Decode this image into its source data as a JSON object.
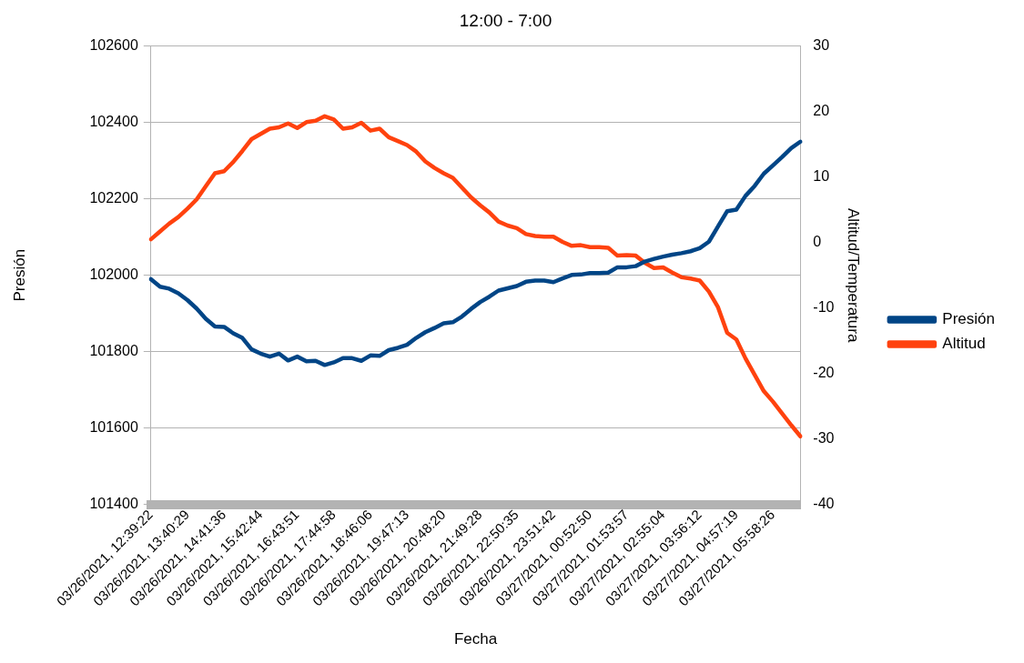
{
  "chart_data": {
    "type": "line",
    "title": "12:00 - 7:00",
    "xlabel": "Fecha",
    "ylabel": "Presión",
    "y2label": "Altitud/Temperatura",
    "categories": [
      "03/26/2021, 12:39:22",
      null,
      null,
      null,
      "03/26/2021, 13:40:29",
      null,
      null,
      null,
      "03/26/2021, 14:41:36",
      null,
      null,
      null,
      "03/26/2021, 15:42:44",
      null,
      null,
      null,
      "03/26/2021, 16:43:51",
      null,
      null,
      null,
      "03/26/2021, 17:44:58",
      null,
      null,
      null,
      "03/26/2021, 18:46:06",
      null,
      null,
      null,
      "03/26/2021, 19:47:13",
      null,
      null,
      null,
      "03/26/2021, 20:48:20",
      null,
      null,
      null,
      "03/26/2021, 21:49:28",
      null,
      null,
      null,
      "03/26/2021, 22:50:35",
      null,
      null,
      null,
      "03/26/2021, 23:51:42",
      null,
      null,
      null,
      "03/27/2021, 00:52:50",
      null,
      null,
      null,
      "03/27/2021, 01:53:57",
      null,
      null,
      null,
      "03/27/2021, 02:55:04",
      null,
      null,
      null,
      "03/27/2021, 03:56:12",
      null,
      null,
      null,
      "03/27/2021, 04:57:19",
      null,
      null,
      null,
      "03/27/2021, 05:58:26",
      null,
      null,
      null
    ],
    "series": [
      {
        "name": "Presión",
        "color": "#004586",
        "values": [
          101990,
          101970,
          101965,
          101953,
          101935,
          101913,
          101886,
          101866,
          101865,
          101848,
          101836,
          101806,
          101795,
          101787,
          101795,
          101777,
          101787,
          101775,
          101776,
          101765,
          101772,
          101783,
          101783,
          101776,
          101790,
          101789,
          101804,
          101810,
          101818,
          101836,
          101851,
          101862,
          101874,
          101877,
          101892,
          101912,
          101930,
          101944,
          101960,
          101966,
          101972,
          101983,
          101986,
          101986,
          101982,
          101992,
          102001,
          102002,
          102006,
          102006,
          102007,
          102021,
          102021,
          102024,
          102036,
          102043,
          102049,
          102054,
          102058,
          102063,
          102071,
          102088,
          102128,
          102168,
          102172,
          102208,
          102234,
          102266,
          102288,
          102310,
          102333,
          102350
        ]
      },
      {
        "name": "Altitud",
        "color": "#ff420e",
        "axis": "y2",
        "values": [
          0.5,
          1.7,
          2.9,
          3.9,
          5.2,
          6.6,
          8.6,
          10.6,
          10.9,
          12.3,
          14.0,
          15.8,
          16.6,
          17.4,
          17.6,
          18.2,
          17.5,
          18.4,
          18.6,
          19.3,
          18.8,
          17.4,
          17.6,
          18.3,
          17.1,
          17.4,
          16.1,
          15.5,
          14.9,
          13.9,
          12.4,
          11.4,
          10.6,
          9.9,
          8.4,
          6.9,
          5.7,
          4.6,
          3.2,
          2.6,
          2.2,
          1.3,
          1.0,
          0.9,
          0.9,
          0.1,
          -0.5,
          -0.4,
          -0.7,
          -0.7,
          -0.8,
          -2.0,
          -1.9,
          -2.0,
          -3.1,
          -3.9,
          -3.8,
          -4.6,
          -5.3,
          -5.5,
          -5.8,
          -7.5,
          -9.9,
          -13.8,
          -14.8,
          -17.7,
          -20.2,
          -22.7,
          -24.3,
          -26.1,
          -27.9,
          -29.6
        ]
      }
    ],
    "ylim": [
      101400,
      102600
    ],
    "yticks": [
      101400,
      101600,
      101800,
      102000,
      102200,
      102400,
      102600
    ],
    "y2lim": [
      -40,
      30
    ],
    "y2ticks": [
      -40,
      -30,
      -20,
      -10,
      0,
      10,
      20,
      30
    ],
    "grid": "y",
    "legend": "right",
    "marker": "none",
    "line_style": "solid"
  }
}
